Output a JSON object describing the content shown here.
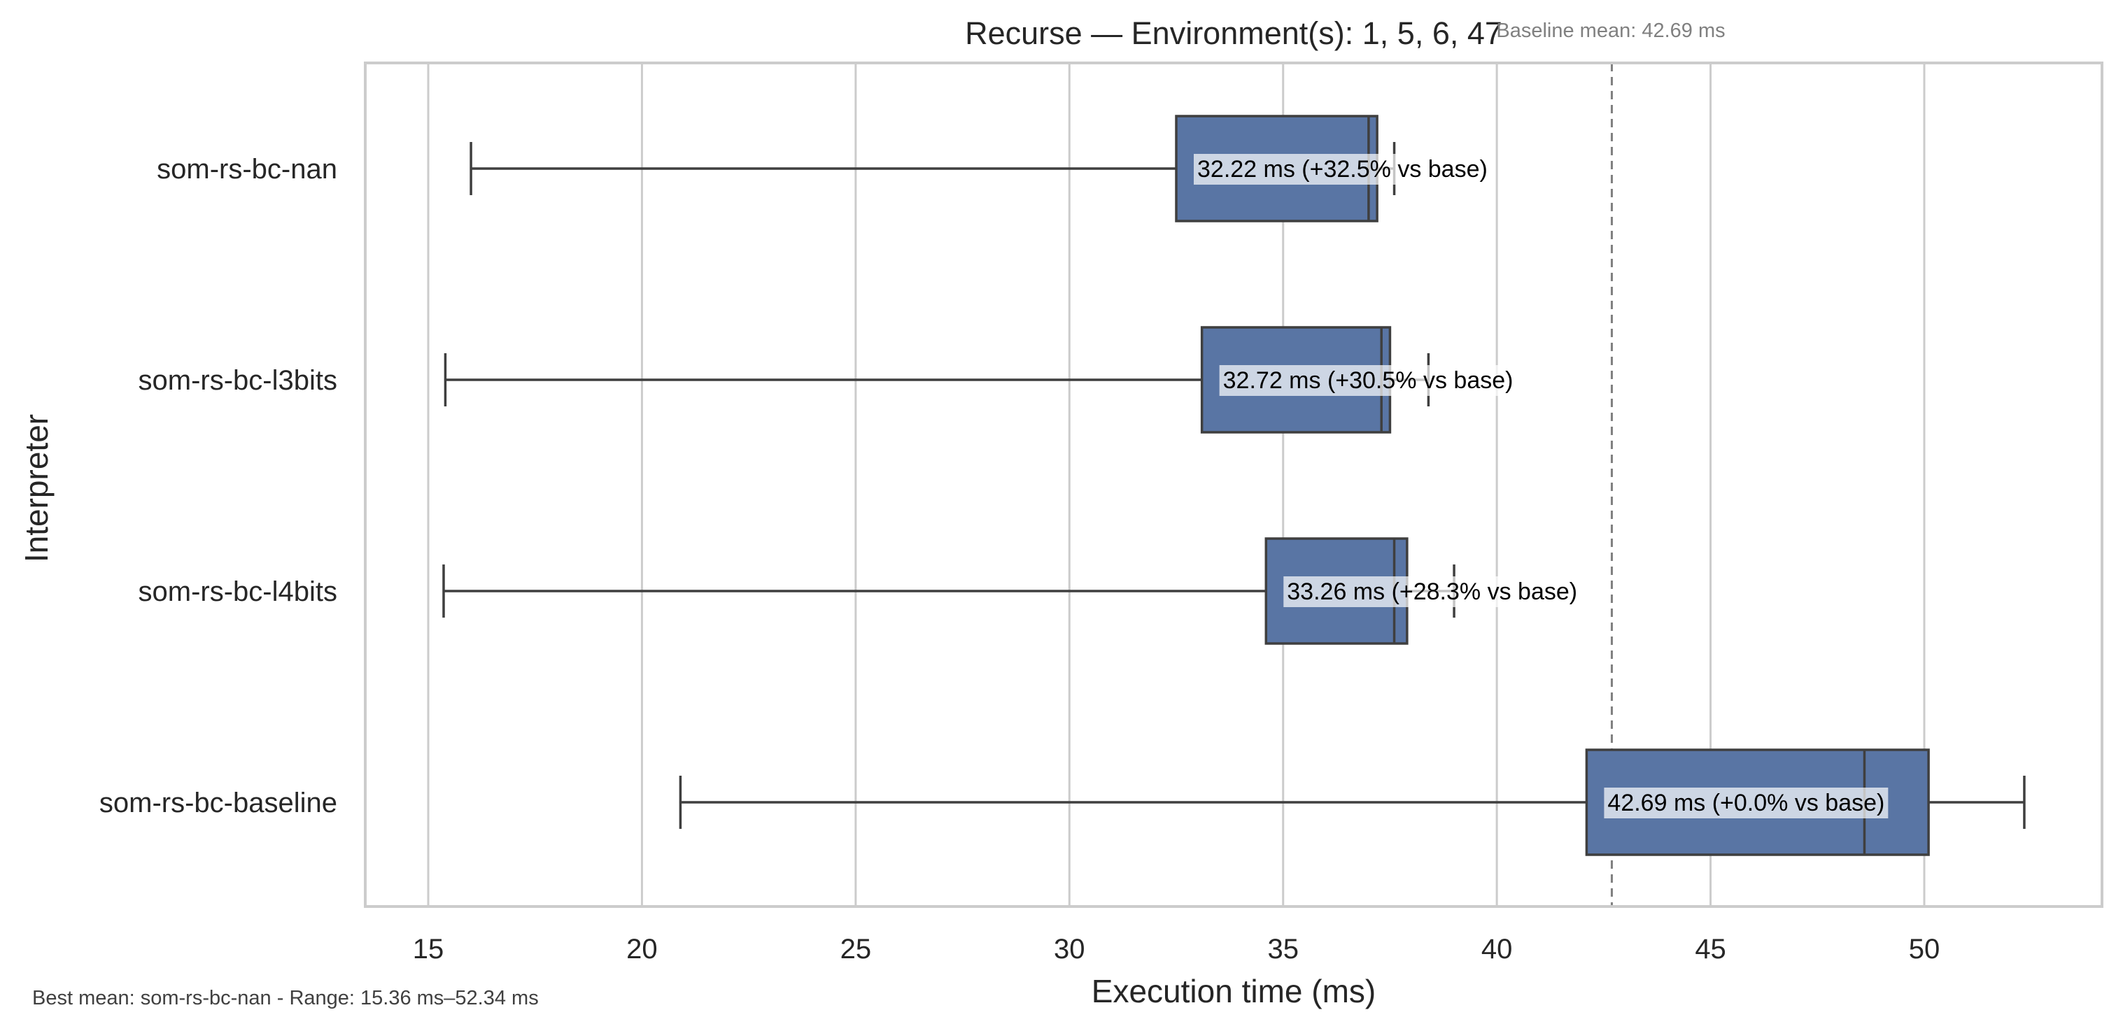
{
  "chart_data": {
    "type": "box",
    "orientation": "horizontal",
    "title": "Recurse — Environment(s): 1, 5, 6, 47",
    "xlabel": "Execution time (ms)",
    "ylabel": "Interpreter",
    "xlim": [
      13.5,
      54
    ],
    "xticks": [
      15,
      20,
      25,
      30,
      35,
      40,
      45,
      50
    ],
    "grid": "vertical",
    "box_color": "#5975a4",
    "categories": [
      "som-rs-bc-nan",
      "som-rs-bc-l3bits",
      "som-rs-bc-l4bits",
      "som-rs-bc-baseline"
    ],
    "series": [
      {
        "category": "som-rs-bc-nan",
        "whisker_low": 16.0,
        "q1": 32.5,
        "median": 37.0,
        "q3": 37.2,
        "whisker_high": 37.6,
        "label": "32.22 ms  (+32.5% vs base)"
      },
      {
        "category": "som-rs-bc-l3bits",
        "whisker_low": 15.4,
        "q1": 33.1,
        "median": 37.3,
        "q3": 37.5,
        "whisker_high": 38.4,
        "label": "32.72 ms  (+30.5% vs base)"
      },
      {
        "category": "som-rs-bc-l4bits",
        "whisker_low": 15.36,
        "q1": 34.6,
        "median": 37.6,
        "q3": 37.9,
        "whisker_high": 39.0,
        "label": "33.26 ms  (+28.3% vs base)"
      },
      {
        "category": "som-rs-bc-baseline",
        "whisker_low": 20.9,
        "q1": 42.1,
        "median": 48.6,
        "q3": 50.1,
        "whisker_high": 52.34,
        "label": "42.69 ms  (+0.0% vs base)"
      }
    ],
    "reference_line": {
      "value": 42.69,
      "label": "Baseline mean: 42.69 ms",
      "style": "dashed"
    },
    "footnote": "Best mean: som-rs-bc-nan - Range: 15.36 ms–52.34 ms"
  }
}
